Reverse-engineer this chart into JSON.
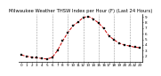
{
  "title": "Milwaukee Weather THSW Index per Hour (F) (Last 24 Hours)",
  "background_color": "#ffffff",
  "line_color": "#cc0000",
  "marker_color": "#000000",
  "grid_color": "#999999",
  "hours": [
    0,
    1,
    2,
    3,
    4,
    5,
    6,
    7,
    8,
    9,
    10,
    11,
    12,
    13,
    14,
    15,
    16,
    17,
    18,
    19,
    20,
    21,
    22,
    23
  ],
  "values": [
    22,
    20,
    18,
    17,
    16,
    15,
    18,
    30,
    47,
    62,
    74,
    81,
    89,
    91,
    86,
    79,
    69,
    56,
    49,
    43,
    40,
    38,
    36,
    35
  ],
  "ylim": [
    10,
    95
  ],
  "yticks": [
    20,
    30,
    40,
    50,
    60,
    70,
    80,
    90
  ],
  "ytick_labels": [
    "2",
    "3",
    "4",
    "5",
    "6",
    "7",
    "8",
    "9"
  ],
  "grid_hours": [
    3,
    6,
    9,
    12,
    15,
    18,
    21
  ],
  "xtick_hours": [
    0,
    1,
    2,
    3,
    4,
    5,
    6,
    7,
    8,
    9,
    10,
    11,
    12,
    13,
    14,
    15,
    16,
    17,
    18,
    19,
    20,
    21,
    22,
    23
  ],
  "title_fontsize": 3.8,
  "tick_fontsize": 3.0,
  "line_width": 0.7,
  "marker_size": 1.5
}
